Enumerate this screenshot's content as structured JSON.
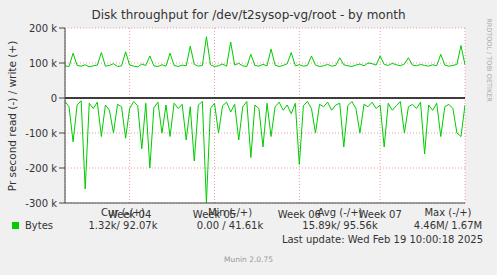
{
  "chart_data": {
    "type": "line",
    "title": "Disk throughput for /dev/t2sysop-vg/root - by month",
    "y_label": "Pr second read (-) / write (+)",
    "x": [
      0,
      1,
      2,
      3,
      4,
      5,
      6,
      7,
      8,
      9,
      10,
      11,
      12,
      13,
      14,
      15,
      16,
      17,
      18,
      19,
      20,
      21,
      22,
      23,
      24,
      25,
      26,
      27,
      28,
      29,
      30,
      31,
      32,
      33,
      34,
      35,
      36,
      37,
      38,
      39,
      40,
      41,
      42,
      43,
      44,
      45,
      46,
      47,
      48,
      49,
      50,
      51,
      52,
      53,
      54,
      55,
      56,
      57,
      58,
      59,
      60,
      61,
      62,
      63,
      64,
      65,
      66,
      67,
      68,
      69,
      70,
      71,
      72,
      73,
      74,
      75,
      76,
      77,
      78,
      79,
      80,
      81,
      82,
      83,
      84,
      85,
      86,
      87,
      88,
      89,
      90,
      91,
      92,
      93,
      94,
      95,
      96,
      97,
      98,
      99
    ],
    "series": [
      {
        "name": "Bytes",
        "color": "#00cc00",
        "values": [
          92000,
          90000,
          128000,
          93000,
          91000,
          95000,
          89000,
          92000,
          94000,
          130000,
          91000,
          93000,
          98000,
          90000,
          92000,
          132000,
          94000,
          91000,
          89000,
          97000,
          93000,
          120000,
          92000,
          90000,
          95000,
          91000,
          128000,
          93000,
          90000,
          94000,
          92000,
          148000,
          96000,
          91000,
          93000,
          175000,
          95000,
          90000,
          92000,
          97000,
          91000,
          160000,
          94000,
          99000,
          92000,
          90000,
          125000,
          93000,
          91000,
          96000,
          92000,
          140000,
          94000,
          90000,
          93000,
          98000,
          130000,
          92000,
          95000,
          91000,
          93000,
          120000,
          94000,
          90000,
          92000,
          96000,
          91000,
          93000,
          115000,
          95000,
          92000,
          90000,
          94000,
          97000,
          92000,
          100000,
          98000,
          94000,
          120000,
          96000,
          93000,
          99000,
          95000,
          92000,
          97000,
          115000,
          94000,
          92000,
          96000,
          93000,
          91000,
          95000,
          92000,
          125000,
          94000,
          91000,
          93000,
          96000,
          150000,
          95000
        ],
        "read": [
          -10000,
          -25000,
          -125000,
          -20000,
          -8000,
          -260000,
          -15000,
          -30000,
          -12000,
          -110000,
          -20000,
          -35000,
          -100000,
          -18000,
          -25000,
          -115000,
          -30000,
          -10000,
          -22000,
          -145000,
          -15000,
          -200000,
          -28000,
          -12000,
          -100000,
          -20000,
          -110000,
          -15000,
          -30000,
          -18000,
          -120000,
          -25000,
          -180000,
          -20000,
          -10000,
          -300000,
          -30000,
          -15000,
          -100000,
          -22000,
          -12000,
          -40000,
          -18000,
          -120000,
          -25000,
          -10000,
          -170000,
          -20000,
          -30000,
          -140000,
          -15000,
          -110000,
          -25000,
          -12000,
          -35000,
          -20000,
          -45000,
          -15000,
          -190000,
          -22000,
          -10000,
          -30000,
          -100000,
          -18000,
          -25000,
          -12000,
          -35000,
          -20000,
          -15000,
          -140000,
          -22000,
          -10000,
          -30000,
          -100000,
          -18000,
          -25000,
          -12000,
          -30000,
          -20000,
          -140000,
          -15000,
          -35000,
          -22000,
          -10000,
          -100000,
          -25000,
          -18000,
          -30000,
          -12000,
          -160000,
          -20000,
          -35000,
          -15000,
          -110000,
          -25000,
          -18000,
          -30000,
          -100000,
          -110000,
          -20000
        ]
      }
    ],
    "xlim": [
      0,
      99
    ],
    "xticks": [
      {
        "value": 16,
        "label": "Week 04"
      },
      {
        "value": 37,
        "label": "Week 05"
      },
      {
        "value": 58,
        "label": "Week 06"
      },
      {
        "value": 78,
        "label": "Week 07"
      }
    ],
    "ylim": [
      -300000,
      200000
    ],
    "yticks": [
      {
        "value": -300000,
        "label": "-300 k"
      },
      {
        "value": -200000,
        "label": "-200 k"
      },
      {
        "value": -100000,
        "label": "-100 k"
      },
      0,
      {
        "value": 100000,
        "label": "100 k"
      },
      {
        "value": 200000,
        "label": "200 k"
      }
    ],
    "grid": true,
    "stats": {
      "columns": [
        "Cur (-/+)",
        "Min (-/+)",
        "Avg (-/+)",
        "Max (-/+)"
      ],
      "values": [
        "1.32k/ 92.07k",
        "0.00 / 41.61k",
        "15.89k/ 95.56k",
        "4.46M/ 1.67M"
      ]
    },
    "footer": "Last update: Wed Feb 19 10:00:18 2025",
    "credit": "Munin 2.0.75",
    "watermark": "RRDTOOL / TOBI OETIKER"
  }
}
